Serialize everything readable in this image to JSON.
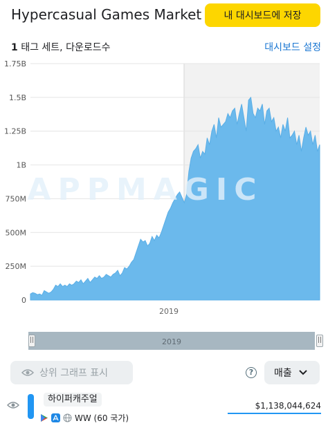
{
  "header": {
    "title": "Hypercasual Games Market ...",
    "add_to_dashboard_label": "내 대시보드에 저장"
  },
  "subbar": {
    "tag_count": "1",
    "tag_text": " 태그 세트, 다운로드수",
    "dashboard_settings_label": "대시보드 설정"
  },
  "watermark": "APPMAGIC",
  "chart_data": {
    "type": "area",
    "y_ticks": [
      "1.75B",
      "1.5B",
      "1.25B",
      "1B",
      "750M",
      "500M",
      "250M",
      "0"
    ],
    "ylim": [
      0,
      1750000000
    ],
    "x_tick_label": "2019",
    "grid": true,
    "highlight_from_year": "2019",
    "series": [
      {
        "color": "#6bb9ec",
        "values": [
          0.045,
          0.055,
          0.05,
          0.04,
          0.045,
          0.035,
          0.07,
          0.06,
          0.05,
          0.06,
          0.08,
          0.11,
          0.1,
          0.12,
          0.1,
          0.11,
          0.1,
          0.12,
          0.11,
          0.12,
          0.14,
          0.13,
          0.15,
          0.12,
          0.14,
          0.16,
          0.13,
          0.15,
          0.17,
          0.16,
          0.18,
          0.16,
          0.17,
          0.19,
          0.18,
          0.17,
          0.19,
          0.2,
          0.22,
          0.18,
          0.2,
          0.24,
          0.23,
          0.25,
          0.28,
          0.3,
          0.35,
          0.4,
          0.45,
          0.43,
          0.44,
          0.4,
          0.42,
          0.47,
          0.44,
          0.48,
          0.46,
          0.5,
          0.55,
          0.6,
          0.65,
          0.68,
          0.72,
          0.75,
          0.78,
          0.8,
          0.76,
          0.72,
          0.78,
          0.95,
          1.05,
          1.1,
          1.12,
          1.15,
          1.05,
          1.1,
          1.08,
          1.2,
          1.15,
          1.25,
          1.3,
          1.2,
          1.35,
          1.28,
          1.3,
          1.32,
          1.38,
          1.35,
          1.4,
          1.42,
          1.3,
          1.38,
          1.45,
          1.35,
          1.25,
          1.48,
          1.5,
          1.38,
          1.35,
          1.42,
          1.4,
          1.45,
          1.3,
          1.4,
          1.42,
          1.32,
          1.35,
          1.25,
          1.28,
          1.2,
          1.3,
          1.25,
          1.35,
          1.2,
          1.22,
          1.25,
          1.15,
          1.22,
          1.1,
          1.2,
          1.28,
          1.22,
          1.25,
          1.15,
          1.22,
          1.1,
          1.15
        ]
      }
    ]
  },
  "navigator": {
    "label": "2019",
    "left_handle": "||",
    "right_handle": "||"
  },
  "controls": {
    "show_top_chart_label": "상위 그래프 표시",
    "help_glyph": "?",
    "metric_label": "매출"
  },
  "row": {
    "publisher": "하이퍼캐주얼",
    "region": "WW (60 국가)",
    "value": "$1,138,044,624"
  }
}
